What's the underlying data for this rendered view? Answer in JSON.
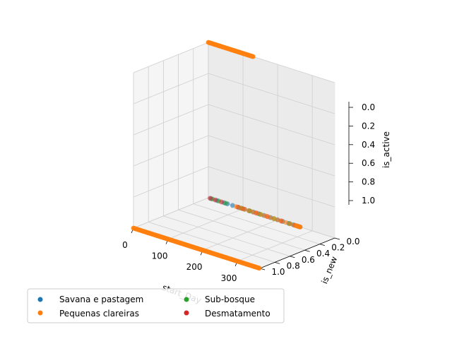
{
  "chart_data": {
    "type": "scatter",
    "projection": "3d",
    "title": "",
    "xlabel": "start_Day",
    "ylabel": "is_new",
    "zlabel": "is_active",
    "xlim": [
      0,
      365
    ],
    "ylim": [
      0,
      1
    ],
    "zlim": [
      0,
      1
    ],
    "x_ticks": [
      0,
      100,
      200,
      300
    ],
    "y_ticks": [
      0.0,
      0.2,
      0.4,
      0.6,
      0.8,
      1.0
    ],
    "z_ticks": [
      0.0,
      0.2,
      0.4,
      0.6,
      0.8,
      1.0
    ],
    "x_tick_labels": [
      "0",
      "100",
      "200",
      "300"
    ],
    "y_tick_labels": [
      "0.0",
      "0.2",
      "0.4",
      "0.6",
      "0.8",
      "1.0"
    ],
    "z_tick_labels": [
      "0.0",
      "0.2",
      "0.4",
      "0.6",
      "0.8",
      "1.0"
    ],
    "z_inverted": true,
    "grid": true,
    "legend": {
      "position": "lower-left",
      "columns": 2
    },
    "series": [
      {
        "name": "Savana e pastagem",
        "color": "#1f77b4",
        "points": [
          {
            "x": 8,
            "y": 0,
            "z": 1
          },
          {
            "x": 25,
            "y": 0,
            "z": 1
          },
          {
            "x": 45,
            "y": 0,
            "z": 1
          },
          {
            "x": 55,
            "y": 0,
            "z": 1
          },
          {
            "x": 70,
            "y": 0,
            "z": 1
          },
          {
            "x": 88,
            "y": 0,
            "z": 1
          },
          {
            "x": 105,
            "y": 0,
            "z": 1
          },
          {
            "x": 118,
            "y": 0,
            "z": 1
          },
          {
            "x": 130,
            "y": 0,
            "z": 1
          },
          {
            "x": 145,
            "y": 0,
            "z": 1
          },
          {
            "x": 160,
            "y": 0,
            "z": 1
          },
          {
            "x": 180,
            "y": 0,
            "z": 1
          },
          {
            "x": 200,
            "y": 0,
            "z": 1
          },
          {
            "x": 215,
            "y": 0,
            "z": 1
          },
          {
            "x": 232,
            "y": 0,
            "z": 1
          },
          {
            "x": 245,
            "y": 0,
            "z": 1
          },
          {
            "x": 258,
            "y": 0,
            "z": 1
          },
          {
            "x": 265,
            "y": 0,
            "z": 1
          }
        ]
      },
      {
        "name": "Pequenas clareiras",
        "color": "#ff7f0e",
        "points": []
      },
      {
        "name": "Sub-bosque",
        "color": "#2ca02c",
        "points": [
          {
            "x": 12,
            "y": 0,
            "z": 1
          },
          {
            "x": 30,
            "y": 0,
            "z": 1
          },
          {
            "x": 50,
            "y": 0,
            "z": 1
          },
          {
            "x": 95,
            "y": 0,
            "z": 1
          },
          {
            "x": 120,
            "y": 0,
            "z": 1
          },
          {
            "x": 150,
            "y": 0,
            "z": 1
          },
          {
            "x": 190,
            "y": 0,
            "z": 1
          },
          {
            "x": 235,
            "y": 0,
            "z": 1
          }
        ]
      },
      {
        "name": "Desmatamento",
        "color": "#d62728",
        "points": [
          {
            "x": 5,
            "y": 0,
            "z": 1
          },
          {
            "x": 20,
            "y": 0,
            "z": 1
          },
          {
            "x": 38,
            "y": 0,
            "z": 1
          },
          {
            "x": 85,
            "y": 0,
            "z": 1
          },
          {
            "x": 100,
            "y": 0,
            "z": 1
          },
          {
            "x": 138,
            "y": 0,
            "z": 1
          },
          {
            "x": 170,
            "y": 0,
            "z": 1
          },
          {
            "x": 210,
            "y": 0,
            "z": 1
          },
          {
            "x": 250,
            "y": 0,
            "z": 1
          },
          {
            "x": 262,
            "y": 0,
            "z": 1
          }
        ]
      }
    ],
    "dense_series": [
      {
        "series": "Pequenas clareiras",
        "x_start": 0,
        "x_end": 365,
        "x_step": 3,
        "y": 1,
        "z": 1
      },
      {
        "series": "Pequenas clareiras",
        "x_start": 0,
        "x_end": 130,
        "x_step": 3,
        "y": 0,
        "z": 0
      },
      {
        "series": "Pequenas clareiras",
        "x_start": 80,
        "x_end": 265,
        "x_step": 12,
        "y": 0,
        "z": 1
      }
    ]
  }
}
